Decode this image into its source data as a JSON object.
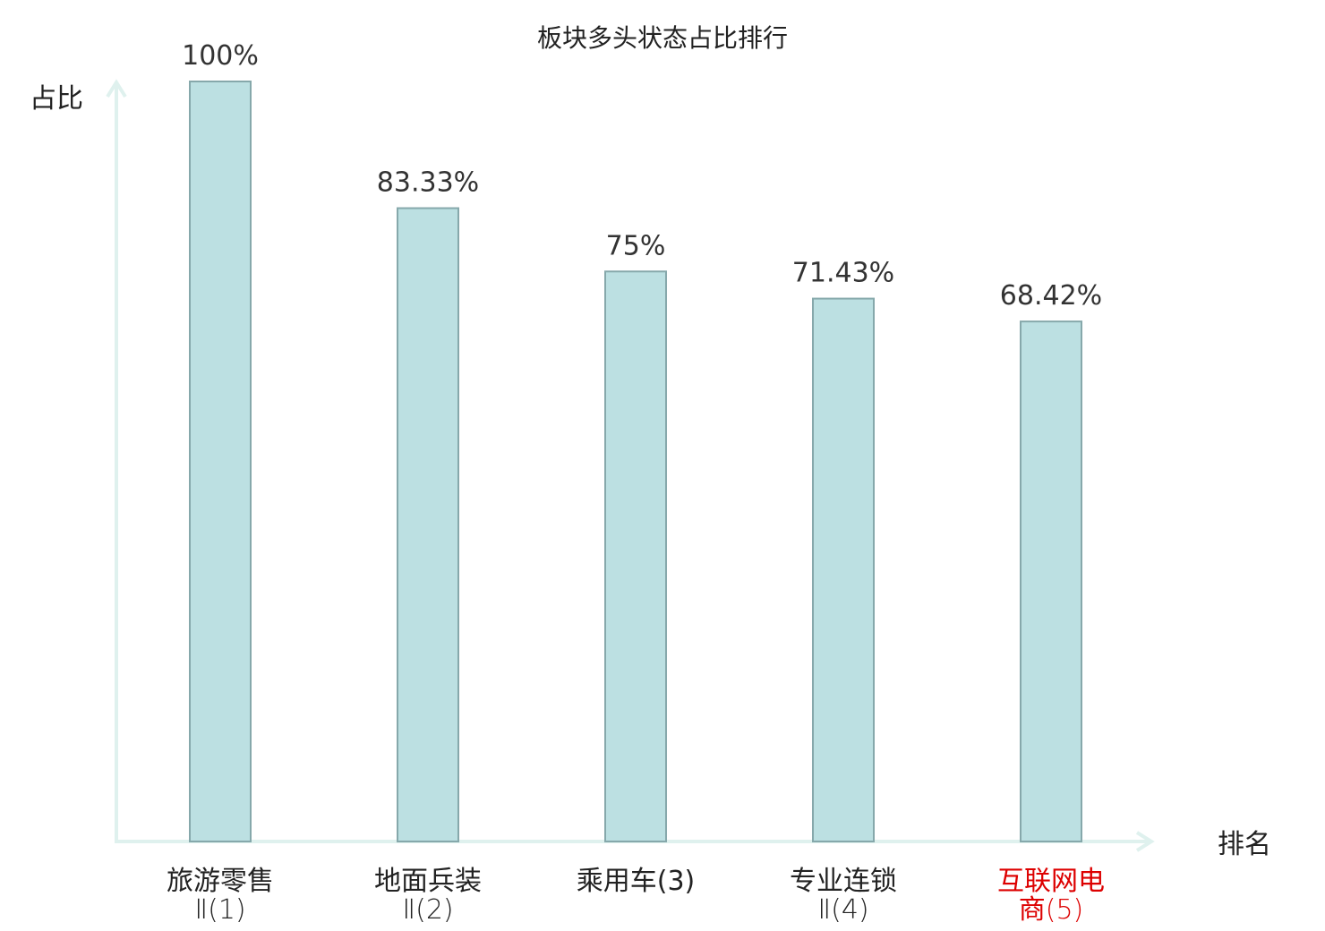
{
  "chart_data": {
    "type": "bar",
    "title": "板块多头状态占比排行",
    "ylabel": "占比",
    "xlabel": "排名",
    "ylim": [
      0,
      100
    ],
    "grid": false,
    "categories": [
      {
        "name": "旅游零售",
        "sub": "Ⅱ(1)",
        "highlight": false
      },
      {
        "name": "地面兵装",
        "sub": "Ⅱ(2)",
        "highlight": false
      },
      {
        "name": "乘用车(3)",
        "sub": "",
        "highlight": false
      },
      {
        "name": "专业连锁",
        "sub": "Ⅱ(4)",
        "highlight": false
      },
      {
        "name": "互联网电",
        "sub": "商(5)",
        "highlight": true
      }
    ],
    "values": [
      100,
      83.33,
      75,
      71.43,
      68.42
    ],
    "value_labels": [
      "100%",
      "83.33%",
      "75%",
      "71.43%",
      "68.42%"
    ],
    "colors": {
      "bar_fill": "#bce0e2",
      "bar_stroke": "#86a8ab",
      "axis": "#dff1ee",
      "highlight_label": "#dd0000",
      "label": "#222222"
    }
  }
}
